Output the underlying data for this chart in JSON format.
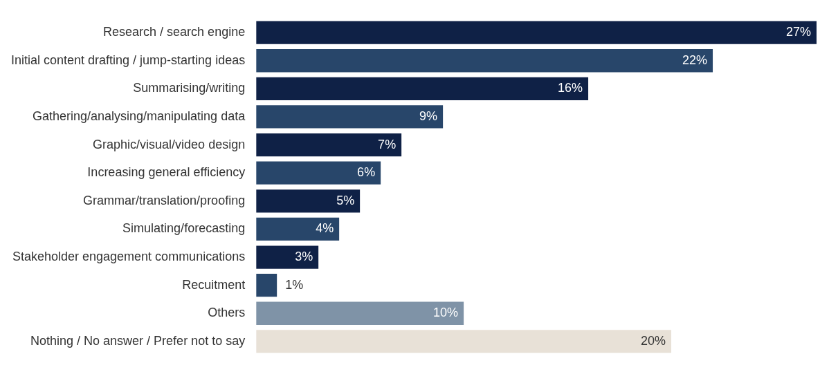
{
  "chart_data": {
    "type": "bar",
    "orientation": "horizontal",
    "categories": [
      "Research / search engine",
      "Initial content drafting / jump-starting ideas",
      "Summarising/writing",
      "Gathering/analysing/manipulating data",
      "Graphic/visual/video design",
      "Increasing general efficiency",
      "Grammar/translation/proofing",
      "Simulating/forecasting",
      "Stakeholder engagement communications",
      "Recuitment",
      "Others",
      "Nothing / No answer / Prefer not to say"
    ],
    "values": [
      27,
      22,
      16,
      9,
      7,
      6,
      5,
      4,
      3,
      1,
      10,
      20
    ],
    "colors": [
      "#0f2146",
      "#28466a",
      "#0f2146",
      "#28466a",
      "#0f2146",
      "#28466a",
      "#0f2146",
      "#28466a",
      "#0f2146",
      "#28466a",
      "#7f93a7",
      "#e8e1d7"
    ],
    "value_labels": [
      "27%",
      "22%",
      "16%",
      "9%",
      "7%",
      "6%",
      "5%",
      "4%",
      "3%",
      "1%",
      "10%",
      "20%"
    ],
    "legend": false
  }
}
